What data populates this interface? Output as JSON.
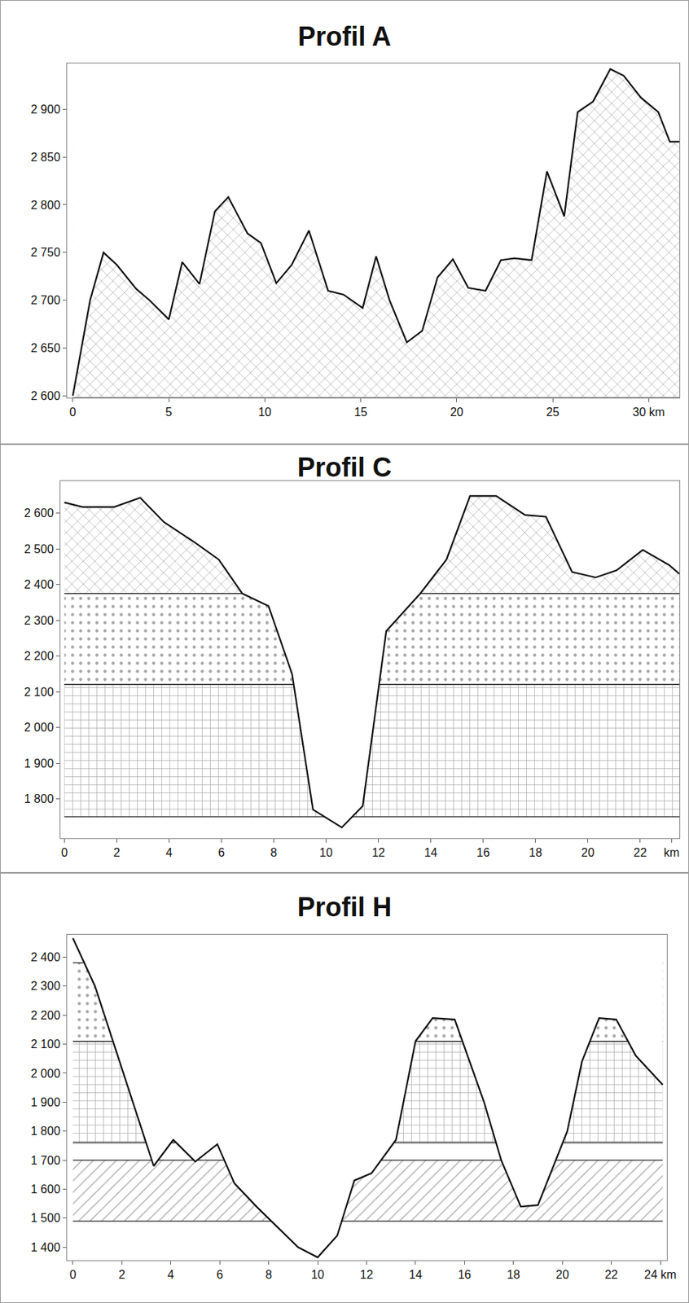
{
  "chart_data": [
    {
      "type": "area",
      "title": "Profil A",
      "grid": false,
      "x": [
        0,
        0.9,
        1.6,
        2.3,
        3.3,
        4,
        5,
        5.7,
        6.6,
        7.4,
        8.1,
        9.1,
        9.8,
        10.6,
        11.4,
        12.3,
        13.3,
        14.1,
        15.1,
        15.8,
        16.5,
        17.4,
        18.2,
        19,
        19.8,
        20.6,
        21.5,
        22.3,
        23,
        23.9,
        24.7,
        25.6,
        26.3,
        27.1,
        28,
        28.7,
        29.6,
        30.5,
        31.1,
        31.6
      ],
      "values": [
        2600,
        2700,
        2750,
        2737,
        2712,
        2700,
        2680,
        2740,
        2717,
        2793,
        2808,
        2770,
        2760,
        2718,
        2737,
        2773,
        2710,
        2706,
        2692,
        2746,
        2700,
        2656,
        2668,
        2724,
        2743,
        2713,
        2710,
        2742,
        2744,
        2742,
        2835,
        2788,
        2897,
        2908,
        2942,
        2935,
        2912,
        2897,
        2866,
        2866
      ],
      "xlim": [
        -0.3,
        31.6
      ],
      "xticks": [
        0,
        5,
        10,
        15,
        20,
        25,
        {
          "value": 30,
          "label": "30 km"
        }
      ],
      "ylim": [
        2598,
        2948
      ],
      "yticks": [
        {
          "value": 2600,
          "label": "2 600"
        },
        {
          "value": 2650,
          "label": "2 650"
        },
        {
          "value": 2700,
          "label": "2 700"
        },
        {
          "value": 2750,
          "label": "2 750"
        },
        {
          "value": 2800,
          "label": "2 800"
        },
        {
          "value": 2850,
          "label": "2 850"
        },
        {
          "value": 2900,
          "label": "2 900"
        }
      ],
      "layers": [
        {
          "top": 2948,
          "bottom": 2598,
          "marker": "x"
        }
      ]
    },
    {
      "type": "area",
      "title": "Profil C",
      "grid": false,
      "x": [
        0,
        0.7,
        1.9,
        2.9,
        3.8,
        5,
        5.9,
        6.8,
        7.8,
        8.7,
        9.5,
        10.6,
        11.4,
        12.3,
        13.6,
        14.6,
        15.5,
        16.5,
        17.6,
        18.4,
        19.4,
        20.3,
        21.1,
        22.1,
        23.1,
        23.5
      ],
      "values": [
        2630,
        2617,
        2617,
        2643,
        2575,
        2517,
        2470,
        2375,
        2340,
        2150,
        1770,
        1720,
        1780,
        2270,
        2375,
        2470,
        2648,
        2648,
        2595,
        2590,
        2435,
        2420,
        2440,
        2497,
        2455,
        2430
      ],
      "xlim": [
        -0.15,
        23.5
      ],
      "xticks": [
        0,
        2,
        4,
        6,
        8,
        10,
        12,
        14,
        16,
        18,
        20,
        22,
        {
          "value": 23.2,
          "label": "km"
        }
      ],
      "ylim": [
        1690,
        2690
      ],
      "yticks": [
        {
          "value": 1800,
          "label": "1 800"
        },
        {
          "value": 1900,
          "label": "1 900"
        },
        {
          "value": 2000,
          "label": "2 000"
        },
        {
          "value": 2100,
          "label": "2 100"
        },
        {
          "value": 2200,
          "label": "2 200"
        },
        {
          "value": 2300,
          "label": "2 300"
        },
        {
          "value": 2400,
          "label": "2 400"
        },
        {
          "value": 2500,
          "label": "2 500"
        },
        {
          "value": 2600,
          "label": "2 600"
        }
      ],
      "layers": [
        {
          "top": 2690,
          "bottom": 2375,
          "marker": "x"
        },
        {
          "top": 2375,
          "bottom": 2120,
          "marker": "."
        },
        {
          "top": 2120,
          "bottom": 1750,
          "marker": "+"
        }
      ]
    },
    {
      "type": "area",
      "title": "Profil H",
      "grid": false,
      "x": [
        0,
        0.9,
        3.3,
        4.1,
        5,
        5.9,
        6.6,
        7.5,
        9.2,
        10,
        10.8,
        11.5,
        12.2,
        13.2,
        14,
        14.7,
        15.6,
        16.8,
        17.5,
        18.3,
        19,
        20.2,
        20.8,
        21.5,
        22.2,
        23,
        24.1
      ],
      "values": [
        2465,
        2300,
        1680,
        1770,
        1695,
        1755,
        1620,
        1540,
        1400,
        1365,
        1440,
        1630,
        1655,
        1770,
        2110,
        2190,
        2185,
        1900,
        1700,
        1540,
        1545,
        1800,
        2040,
        2190,
        2185,
        2060,
        1960
      ],
      "xlim": [
        -0.24,
        24.27
      ],
      "xticks": [
        0,
        2,
        4,
        6,
        8,
        10,
        12,
        14,
        16,
        18,
        20,
        22,
        {
          "value": 24,
          "label": "24 km"
        }
      ],
      "ylim": [
        1355,
        2477
      ],
      "yticks": [
        {
          "value": 1400,
          "label": "1 400"
        },
        {
          "value": 1500,
          "label": "1 500"
        },
        {
          "value": 1600,
          "label": "1 600"
        },
        {
          "value": 1700,
          "label": "1 700"
        },
        {
          "value": 1800,
          "label": "1 800"
        },
        {
          "value": 1900,
          "label": "1 900"
        },
        {
          "value": 2000,
          "label": "2 000"
        },
        {
          "value": 2100,
          "label": "2 100"
        },
        {
          "value": 2200,
          "label": "2 200"
        },
        {
          "value": 2300,
          "label": "2 300"
        },
        {
          "value": 2400,
          "label": "2 400"
        }
      ],
      "layers": [
        {
          "top": 2380,
          "bottom": 2110,
          "marker": "."
        },
        {
          "top": 2110,
          "bottom": 1760,
          "marker": "+"
        },
        {
          "top": 1700,
          "bottom": 1490,
          "marker": "/"
        }
      ]
    }
  ]
}
